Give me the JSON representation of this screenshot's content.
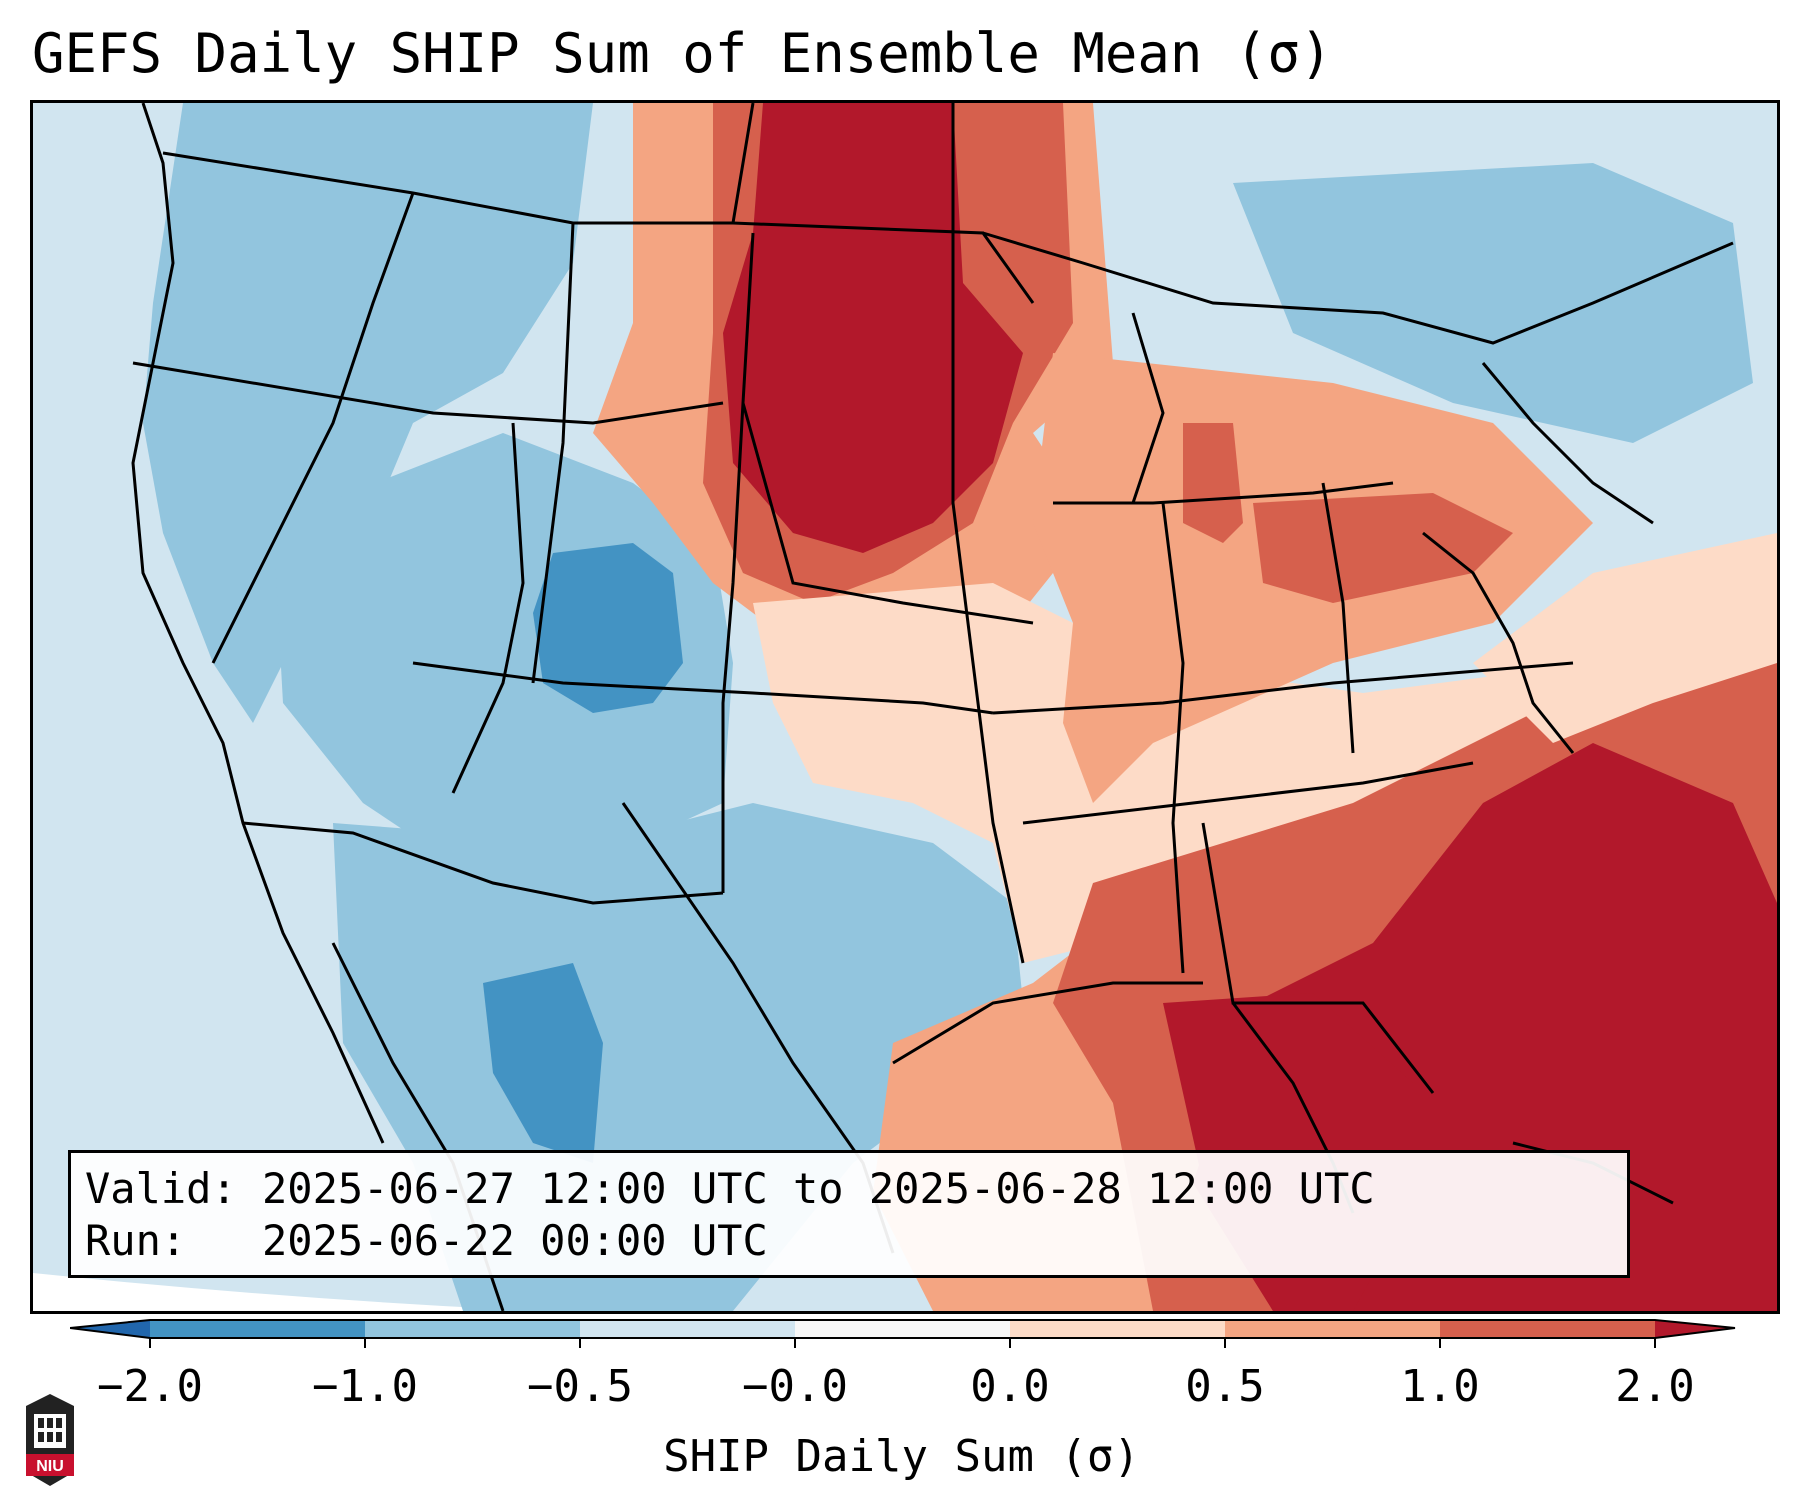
{
  "title": "GEFS Daily SHIP Sum of Ensemble Mean (σ)",
  "info": {
    "valid_label": "Valid:",
    "valid_value": "2025-06-27 12:00 UTC to 2025-06-28 12:00 UTC",
    "run_label": "Run:",
    "run_value": "2025-06-22 00:00 UTC"
  },
  "colorbar": {
    "title": "SHIP Daily Sum (σ)",
    "ticks": [
      "−2.0",
      "−1.0",
      "−0.5",
      "−0.0",
      "0.0",
      "0.5",
      "1.0",
      "2.0"
    ],
    "bins": [
      {
        "color": "#4393c3"
      },
      {
        "color": "#92c5de"
      },
      {
        "color": "#d1e5f0"
      },
      {
        "color": "#f7f7f7"
      },
      {
        "color": "#fddbc7"
      },
      {
        "color": "#f4a582"
      },
      {
        "color": "#d6604d"
      }
    ],
    "under_color": "#2166ac",
    "over_color": "#b2182b"
  },
  "map": {
    "background_color": "#d1e5f0",
    "state_line_color": "#000000",
    "regions": [
      "light-blue-west",
      "blue-rockies",
      "red-northern-plains",
      "orange-midwest",
      "red-southeast",
      "red-atlantic",
      "light-red-southern-plains",
      "blue-texas-mexico"
    ]
  },
  "logo": {
    "text": "NIU",
    "color": "#c8102e"
  }
}
